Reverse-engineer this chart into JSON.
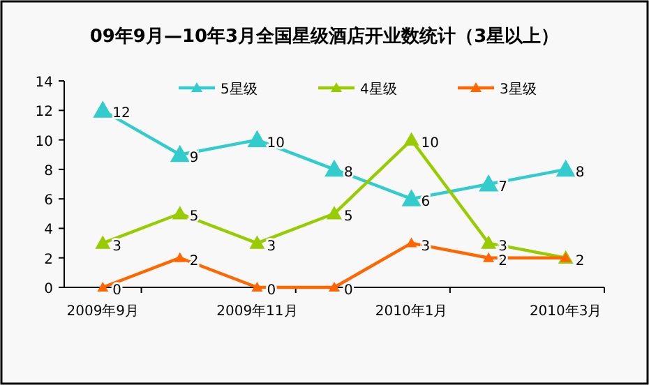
{
  "chart_data": {
    "type": "line",
    "title": "09年9月—10年3月全国星级酒店开业数统计（3星以上）",
    "categories": [
      "2009年9月",
      null,
      "2009年11月",
      null,
      "2010年1月",
      null,
      "2010年3月"
    ],
    "series": [
      {
        "name": "5星级",
        "color": "#33cccc",
        "values": [
          12,
          9,
          10,
          8,
          6,
          7,
          8
        ],
        "value_labels": [
          "12",
          "9",
          "10",
          "8",
          "6",
          "7",
          "8"
        ]
      },
      {
        "name": "4星级",
        "color": "#99cc00",
        "values": [
          3,
          5,
          3,
          5,
          10,
          3,
          2
        ],
        "value_labels": [
          "3",
          "5",
          "3",
          "5",
          "10",
          "3",
          null
        ]
      },
      {
        "name": "3星级",
        "color": "#ff6600",
        "values": [
          0,
          2,
          0,
          0,
          3,
          2,
          2
        ],
        "value_labels": [
          "0",
          "2",
          "0",
          "0",
          "3",
          "2",
          "2"
        ]
      }
    ],
    "ylim": [
      0,
      14
    ],
    "yticks": [
      0,
      2,
      4,
      6,
      8,
      10,
      12,
      14
    ],
    "marker": "triangle",
    "legend": "top",
    "grid": false
  }
}
